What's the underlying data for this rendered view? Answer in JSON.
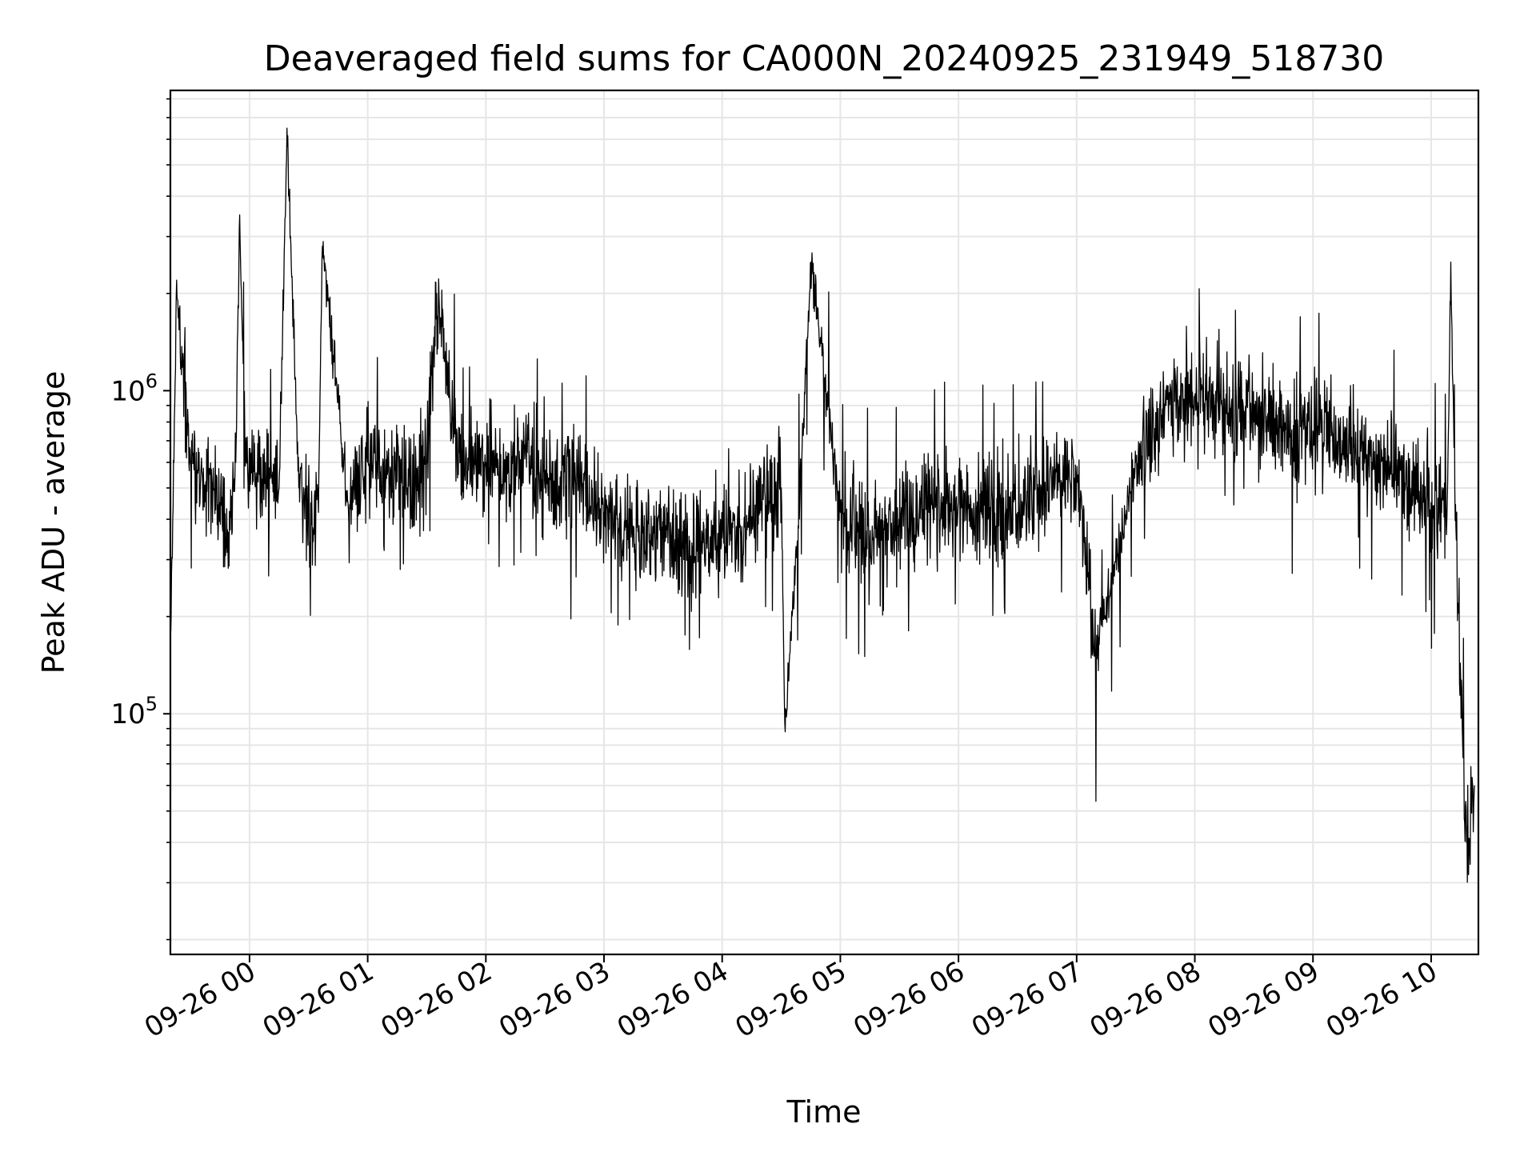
{
  "chart_data": {
    "type": "line",
    "title": "Deaveraged field sums for CA000N_20240925_231949_518730",
    "xlabel": "Time",
    "ylabel": "Peak ADU - average",
    "yscale": "log",
    "ylim": [
      18000,
      8500000
    ],
    "xlim": [
      "2024-09-25T23:19:49",
      "2024-09-26T10:24:00"
    ],
    "x_ticks": [
      {
        "t": "2024-09-26T00:00",
        "label": "09-26 00"
      },
      {
        "t": "2024-09-26T01:00",
        "label": "09-26 01"
      },
      {
        "t": "2024-09-26T02:00",
        "label": "09-26 02"
      },
      {
        "t": "2024-09-26T03:00",
        "label": "09-26 03"
      },
      {
        "t": "2024-09-26T04:00",
        "label": "09-26 04"
      },
      {
        "t": "2024-09-26T05:00",
        "label": "09-26 05"
      },
      {
        "t": "2024-09-26T06:00",
        "label": "09-26 06"
      },
      {
        "t": "2024-09-26T07:00",
        "label": "09-26 07"
      },
      {
        "t": "2024-09-26T08:00",
        "label": "09-26 08"
      },
      {
        "t": "2024-09-26T09:00",
        "label": "09-26 09"
      },
      {
        "t": "2024-09-26T10:00",
        "label": "09-26 10"
      }
    ],
    "y_ticks": [
      {
        "value": 100000,
        "base": "10",
        "exp": "5"
      },
      {
        "value": 1000000,
        "base": "10",
        "exp": "6"
      }
    ],
    "grid": true,
    "line_color": "#000000",
    "series": [
      {
        "x": [
          "2024-09-25T23:20",
          "2024-09-25T23:23",
          "2024-09-25T23:26",
          "2024-09-25T23:30",
          "2024-09-25T23:35",
          "2024-09-25T23:40",
          "2024-09-25T23:45",
          "2024-09-25T23:50",
          "2024-09-25T23:53",
          "2024-09-25T23:55",
          "2024-09-25T23:58",
          "2024-09-26T00:05",
          "2024-09-26T00:15",
          "2024-09-26T00:19",
          "2024-09-26T00:25",
          "2024-09-26T00:35",
          "2024-09-26T00:37",
          "2024-09-26T00:50",
          "2024-09-26T01:00",
          "2024-09-26T01:10",
          "2024-09-26T01:20",
          "2024-09-26T01:30",
          "2024-09-26T01:35",
          "2024-09-26T01:45",
          "2024-09-26T02:00",
          "2024-09-26T02:10",
          "2024-09-26T02:20",
          "2024-09-26T02:30",
          "2024-09-26T02:45",
          "2024-09-26T03:00",
          "2024-09-26T03:15",
          "2024-09-26T03:30",
          "2024-09-26T03:45",
          "2024-09-26T04:00",
          "2024-09-26T04:10",
          "2024-09-26T04:20",
          "2024-09-26T04:30",
          "2024-09-26T04:32",
          "2024-09-26T04:40",
          "2024-09-26T04:45",
          "2024-09-26T05:00",
          "2024-09-26T05:15",
          "2024-09-26T05:30",
          "2024-09-26T05:45",
          "2024-09-26T06:00",
          "2024-09-26T06:15",
          "2024-09-26T06:30",
          "2024-09-26T06:45",
          "2024-09-26T07:00",
          "2024-09-26T07:10",
          "2024-09-26T07:30",
          "2024-09-26T07:45",
          "2024-09-26T08:00",
          "2024-09-26T08:10",
          "2024-09-26T08:30",
          "2024-09-26T08:45",
          "2024-09-26T09:00",
          "2024-09-26T09:15",
          "2024-09-26T09:30",
          "2024-09-26T09:45",
          "2024-09-26T10:00",
          "2024-09-26T10:08",
          "2024-09-26T10:10",
          "2024-09-26T10:12",
          "2024-09-26T10:15",
          "2024-09-26T10:18",
          "2024-09-26T10:20",
          "2024-09-26T10:22"
        ],
        "y": [
          180000,
          2200000,
          1200000,
          600000,
          500000,
          550000,
          450000,
          380000,
          600000,
          3500000,
          600000,
          550000,
          500000,
          6500000,
          500000,
          420000,
          2800000,
          450000,
          600000,
          550000,
          500000,
          600000,
          2000000,
          650000,
          600000,
          550000,
          650000,
          500000,
          550000,
          420000,
          380000,
          350000,
          330000,
          350000,
          380000,
          450000,
          500000,
          88000,
          550000,
          2500000,
          420000,
          350000,
          380000,
          420000,
          450000,
          400000,
          420000,
          500000,
          550000,
          150000,
          600000,
          900000,
          950000,
          900000,
          800000,
          750000,
          750000,
          700000,
          600000,
          550000,
          450000,
          400000,
          2500000,
          500000,
          130000,
          40000,
          50000,
          60000
        ]
      }
    ]
  }
}
